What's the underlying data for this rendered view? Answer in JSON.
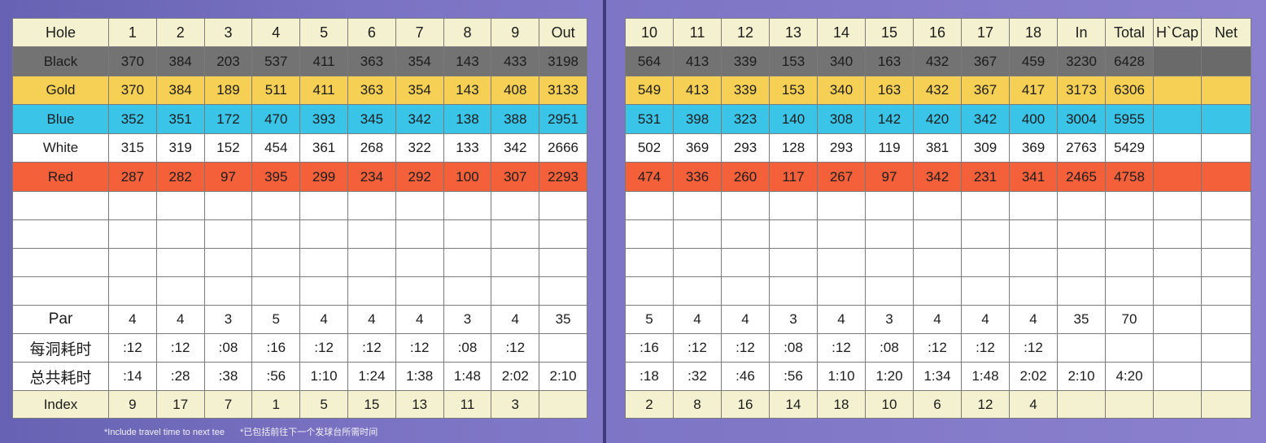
{
  "front_nine": {
    "header": [
      "Hole",
      "1",
      "2",
      "3",
      "4",
      "5",
      "6",
      "7",
      "8",
      "9",
      "Out"
    ],
    "tees": [
      {
        "name": "Black",
        "color": "#737373",
        "values": [
          "370",
          "384",
          "203",
          "537",
          "411",
          "363",
          "354",
          "143",
          "433",
          "3198"
        ]
      },
      {
        "name": "Gold",
        "color": "#f6cf55",
        "values": [
          "370",
          "384",
          "189",
          "511",
          "411",
          "363",
          "354",
          "143",
          "408",
          "3133"
        ]
      },
      {
        "name": "Blue",
        "color": "#39c4e8",
        "values": [
          "352",
          "351",
          "172",
          "470",
          "393",
          "345",
          "342",
          "138",
          "388",
          "2951"
        ]
      },
      {
        "name": "White",
        "color": "#ffffff",
        "values": [
          "315",
          "319",
          "152",
          "454",
          "361",
          "268",
          "322",
          "133",
          "342",
          "2666"
        ]
      },
      {
        "name": "Red",
        "color": "#f4603a",
        "values": [
          "287",
          "282",
          "97",
          "395",
          "299",
          "234",
          "292",
          "100",
          "307",
          "2293"
        ]
      }
    ],
    "par": {
      "label": "Par",
      "values": [
        "4",
        "4",
        "3",
        "5",
        "4",
        "4",
        "4",
        "3",
        "4",
        "35"
      ]
    },
    "hole_time": {
      "label": "每洞耗时",
      "values": [
        ":12",
        ":12",
        ":08",
        ":16",
        ":12",
        ":12",
        ":12",
        ":08",
        ":12",
        ""
      ]
    },
    "total_time": {
      "label": "总共耗时",
      "values": [
        ":14",
        ":28",
        ":38",
        ":56",
        "1:10",
        "1:24",
        "1:38",
        "1:48",
        "2:02",
        "2:10"
      ]
    },
    "index": {
      "label": "Index",
      "values": [
        "9",
        "17",
        "7",
        "1",
        "5",
        "15",
        "13",
        "11",
        "3",
        ""
      ]
    }
  },
  "back_nine": {
    "header": [
      "10",
      "11",
      "12",
      "13",
      "14",
      "15",
      "16",
      "17",
      "18",
      "In",
      "Total",
      "H`Cap",
      "Net"
    ],
    "tees": [
      {
        "name": "Black",
        "values": [
          "564",
          "413",
          "339",
          "153",
          "340",
          "163",
          "432",
          "367",
          "459",
          "3230",
          "6428",
          "",
          ""
        ]
      },
      {
        "name": "Gold",
        "values": [
          "549",
          "413",
          "339",
          "153",
          "340",
          "163",
          "432",
          "367",
          "417",
          "3173",
          "6306",
          "",
          ""
        ]
      },
      {
        "name": "Blue",
        "values": [
          "531",
          "398",
          "323",
          "140",
          "308",
          "142",
          "420",
          "342",
          "400",
          "3004",
          "5955",
          "",
          ""
        ]
      },
      {
        "name": "White",
        "values": [
          "502",
          "369",
          "293",
          "128",
          "293",
          "119",
          "381",
          "309",
          "369",
          "2763",
          "5429",
          "",
          ""
        ]
      },
      {
        "name": "Red",
        "values": [
          "474",
          "336",
          "260",
          "117",
          "267",
          "97",
          "342",
          "231",
          "341",
          "2465",
          "4758",
          "",
          ""
        ]
      }
    ],
    "par": [
      "5",
      "4",
      "4",
      "3",
      "4",
      "3",
      "4",
      "4",
      "4",
      "35",
      "70",
      "",
      ""
    ],
    "hole_time": [
      ":16",
      ":12",
      ":12",
      ":08",
      ":12",
      ":08",
      ":12",
      ":12",
      ":12",
      "",
      "",
      "",
      ""
    ],
    "total_time": [
      ":18",
      ":32",
      ":46",
      ":56",
      "1:10",
      "1:20",
      "1:34",
      "1:48",
      "2:02",
      "2:10",
      "4:20",
      "",
      ""
    ],
    "index": [
      "2",
      "8",
      "16",
      "14",
      "18",
      "10",
      "6",
      "12",
      "4",
      "",
      "",
      "",
      ""
    ]
  },
  "footnotes": {
    "english": "*Include travel time to next tee",
    "chinese": "*已包括前往下一个发球台所需时间"
  },
  "colors": {
    "black_tee": "#737373",
    "gold_tee": "#f6cf55",
    "blue_tee": "#39c4e8",
    "white_tee": "#ffffff",
    "red_tee": "#f4603a",
    "header_bg": "#f3f1cf",
    "cover_purple": "#6f6ab5"
  }
}
